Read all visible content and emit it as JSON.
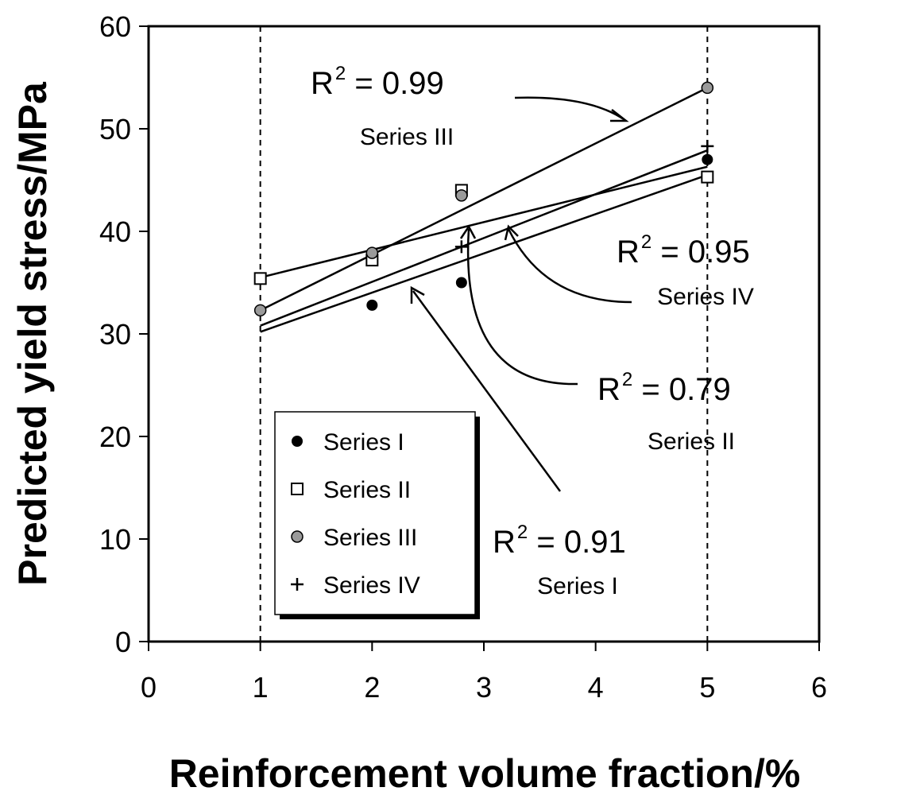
{
  "chart_data": {
    "type": "scatter",
    "title": "",
    "xlabel": "Reinforcement volume fraction/%",
    "ylabel": "Predicted yield stress/MPa",
    "xlim": [
      0,
      6
    ],
    "ylim": [
      0,
      60
    ],
    "xticks": [
      "0",
      "1",
      "2",
      "3",
      "4",
      "5",
      "6"
    ],
    "yticks": [
      "0",
      "10",
      "20",
      "30",
      "40",
      "50",
      "60"
    ],
    "grid": false,
    "legend_position": "bottom-left",
    "reference_lines_x": [
      1,
      5
    ],
    "series": [
      {
        "name": "Series I",
        "marker": "filled-circle",
        "color": "#000000",
        "x": [
          2,
          2.8,
          5
        ],
        "y": [
          32.8,
          35,
          47
        ],
        "fit": {
          "x": [
            1,
            5
          ],
          "y": [
            30.2,
            45.5
          ]
        },
        "r2_label": "R",
        "r2_value": " = 0.91"
      },
      {
        "name": "Series II",
        "marker": "open-square",
        "color": "#000000",
        "x": [
          1,
          2,
          2.8,
          5
        ],
        "y": [
          35.4,
          37.2,
          44,
          45.3
        ],
        "fit": {
          "x": [
            1,
            5
          ],
          "y": [
            35.5,
            46.3
          ]
        },
        "r2_label": "R",
        "r2_value": " = 0.79"
      },
      {
        "name": "Series III",
        "marker": "grey-circle",
        "color": "#9a9a9a",
        "x": [
          1,
          2,
          2.8,
          5
        ],
        "y": [
          32.3,
          37.9,
          43.5,
          54
        ],
        "fit": {
          "x": [
            1,
            5
          ],
          "y": [
            32.3,
            54
          ]
        },
        "r2_label": "R",
        "r2_value": " = 0.99"
      },
      {
        "name": "Series IV",
        "marker": "plus",
        "color": "#000000",
        "x": [
          2.8,
          5
        ],
        "y": [
          38.5,
          48.3
        ],
        "fit": {
          "x": [
            1,
            5
          ],
          "y": [
            30.8,
            47.9
          ]
        },
        "r2_label": "R",
        "r2_value": " = 0.95"
      }
    ],
    "r2_sup": "2"
  }
}
